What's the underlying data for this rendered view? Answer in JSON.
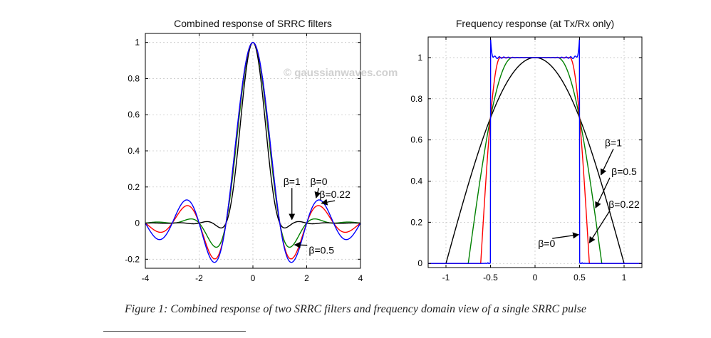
{
  "chart_data": [
    {
      "type": "line",
      "title": "Combined response of SRRC filters",
      "xlim": [
        -4,
        4
      ],
      "ylim": [
        -0.25,
        1.05
      ],
      "xticks": [
        -4,
        -2,
        0,
        2,
        4
      ],
      "yticks": [
        -0.2,
        0,
        0.2,
        0.4,
        0.6,
        0.8,
        1
      ],
      "grid": true,
      "series": [
        {
          "name": "β=0",
          "beta": 0,
          "color": "#0000ff"
        },
        {
          "name": "β=0.22",
          "beta": 0.22,
          "color": "#ff0000"
        },
        {
          "name": "β=0.5",
          "beta": 0.5,
          "color": "#008000"
        },
        {
          "name": "β=1",
          "beta": 1,
          "color": "#000000"
        }
      ],
      "annotations": [
        {
          "text": "β=1",
          "x": 1.45,
          "y": 0.21,
          "point_x": 1.45,
          "point_y": 0.02
        },
        {
          "text": "β=0",
          "x": 2.45,
          "y": 0.21,
          "point_x": 2.35,
          "point_y": 0.14
        },
        {
          "text": "β=0.22",
          "x": 3.05,
          "y": 0.14,
          "point_x": 2.55,
          "point_y": 0.11
        },
        {
          "text": "β=0.5",
          "x": 2.55,
          "y": -0.17,
          "point_x": 1.55,
          "point_y": -0.12
        }
      ]
    },
    {
      "type": "line",
      "title": "Frequency response (at Tx/Rx only)",
      "xlim": [
        -1.2,
        1.2
      ],
      "ylim": [
        -0.02,
        1.1
      ],
      "xticks": [
        -1,
        -0.5,
        0,
        0.5,
        1
      ],
      "yticks": [
        0,
        0.2,
        0.4,
        0.6,
        0.8,
        1
      ],
      "grid": true,
      "series": [
        {
          "name": "β=0",
          "beta": 0,
          "color": "#0000ff"
        },
        {
          "name": "β=0.22",
          "beta": 0.22,
          "color": "#ff0000"
        },
        {
          "name": "β=0.5",
          "beta": 0.5,
          "color": "#008000"
        },
        {
          "name": "β=1",
          "beta": 1,
          "color": "#000000"
        }
      ],
      "annotations": [
        {
          "text": "β=1",
          "x": 0.88,
          "y": 0.57,
          "point_x": 0.74,
          "point_y": 0.43
        },
        {
          "text": "β=0.5",
          "x": 1.0,
          "y": 0.43,
          "point_x": 0.68,
          "point_y": 0.27
        },
        {
          "text": "β=0.22",
          "x": 1.0,
          "y": 0.27,
          "point_x": 0.61,
          "point_y": 0.1
        },
        {
          "text": "β=0",
          "x": 0.13,
          "y": 0.08,
          "point_x": 0.49,
          "point_y": 0.14
        }
      ]
    }
  ],
  "watermark": "© gaussianwaves.com",
  "caption": "Figure 1: Combined response of two SRRC filters and frequency domain view of a single SRRC pulse"
}
